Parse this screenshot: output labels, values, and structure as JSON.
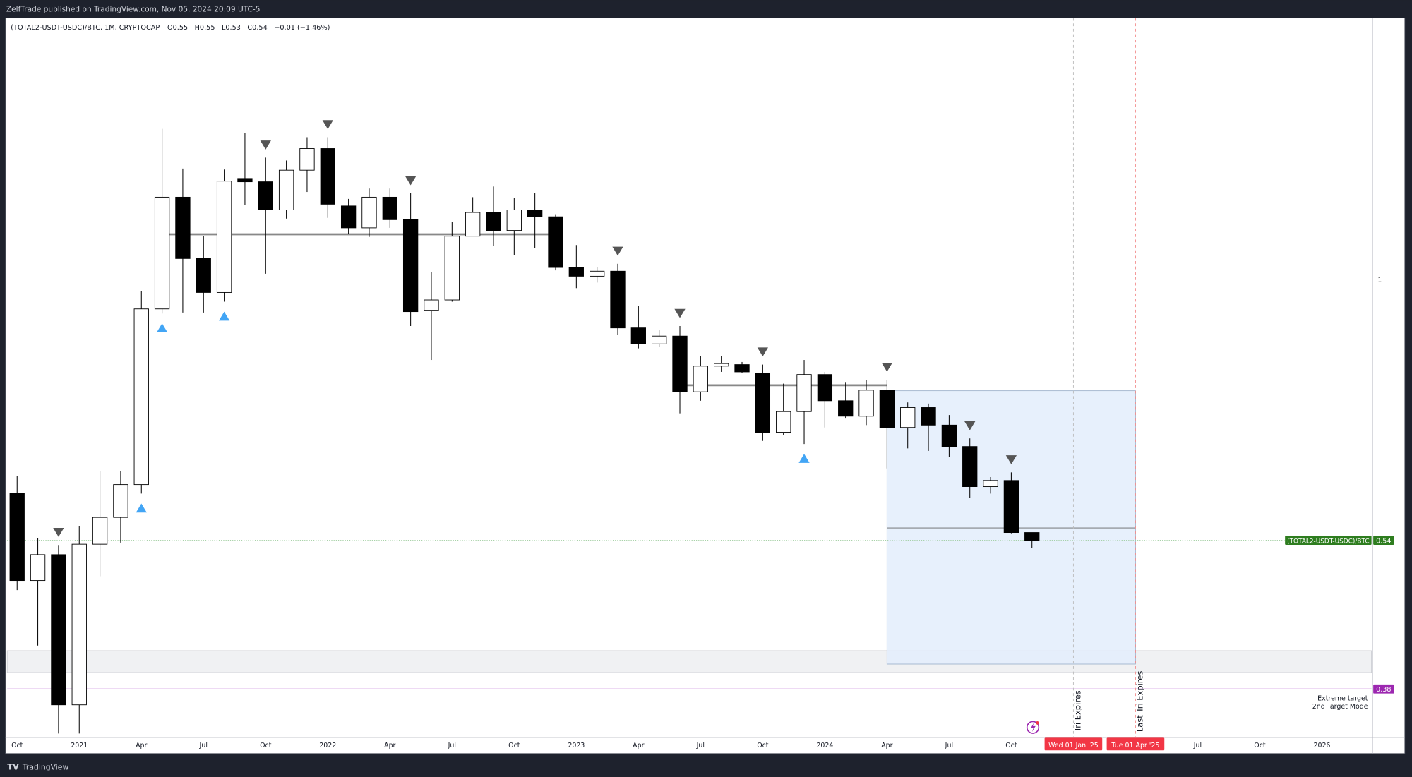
{
  "header": {
    "published": "ZelfTrade published on TradingView.com, Nov 05, 2024 20:09 UTC-5"
  },
  "legend": {
    "symbol": "(TOTAL2-USDT-USDC)/BTC, 1M, CRYPTOCAP",
    "o": "O0.55",
    "h": "H0.55",
    "l": "L0.53",
    "c": "C0.54",
    "change": "−0.01 (−1.46%)"
  },
  "footer": {
    "brand": "TradingView"
  },
  "colors": {
    "up_body": "#ffffff",
    "down_body": "#000000",
    "down_marker": "#555555",
    "up_marker": "#42a5f5",
    "price_badge": "#2e7d1f",
    "target_badge": "#9c27b0",
    "date_badge": "#f23645",
    "box_fill": "#e3edfb",
    "box_border": "#9fb3cc"
  },
  "chart_data": {
    "type": "candlestick",
    "interval": "1M",
    "y_scale": "log",
    "price_axis_ticks": [
      "1"
    ],
    "time_axis_ticks": [
      "Oct",
      "2021",
      "Apr",
      "Jul",
      "Oct",
      "2022",
      "Apr",
      "Jul",
      "Oct",
      "2023",
      "Apr",
      "Jul",
      "Oct",
      "2024",
      "Apr",
      "Jul",
      "Oct",
      "Wed 01 Jan '25",
      "Tue 01 Apr '25",
      "Jul",
      "Oct",
      "2026"
    ],
    "candles_columns": [
      "month",
      "open",
      "high",
      "low",
      "close"
    ],
    "candles": [
      [
        "2020-10",
        0.603,
        0.629,
        0.48,
        0.491
      ],
      [
        "2020-11",
        0.491,
        0.543,
        0.421,
        0.522
      ],
      [
        "2020-12",
        0.522,
        0.534,
        0.342,
        0.366
      ],
      [
        "2021-01",
        0.366,
        0.558,
        0.342,
        0.535
      ],
      [
        "2021-02",
        0.535,
        0.636,
        0.496,
        0.57
      ],
      [
        "2021-03",
        0.57,
        0.636,
        0.537,
        0.616
      ],
      [
        "2021-04",
        0.616,
        0.974,
        0.603,
        0.933
      ],
      [
        "2021-05",
        0.933,
        1.428,
        0.923,
        1.215
      ],
      [
        "2021-06",
        1.215,
        1.3,
        0.925,
        1.051
      ],
      [
        "2021-07",
        1.051,
        1.108,
        0.925,
        0.97
      ],
      [
        "2021-08",
        0.97,
        1.297,
        0.949,
        1.262
      ],
      [
        "2021-09",
        1.27,
        1.413,
        1.192,
        1.26
      ],
      [
        "2021-10",
        1.26,
        1.334,
        1.014,
        1.179
      ],
      [
        "2021-11",
        1.179,
        1.325,
        1.155,
        1.295
      ],
      [
        "2021-12",
        1.295,
        1.4,
        1.23,
        1.363
      ],
      [
        "2022-01",
        1.363,
        1.4,
        1.157,
        1.195
      ],
      [
        "2022-02",
        1.19,
        1.21,
        1.113,
        1.13
      ],
      [
        "2022-03",
        1.13,
        1.24,
        1.106,
        1.215
      ],
      [
        "2022-04",
        1.215,
        1.24,
        1.13,
        1.152
      ],
      [
        "2022-05",
        1.152,
        1.226,
        0.896,
        0.927
      ],
      [
        "2022-06",
        0.93,
        1.018,
        0.827,
        0.953
      ],
      [
        "2022-07",
        0.953,
        1.145,
        0.949,
        1.108
      ],
      [
        "2022-08",
        1.108,
        1.215,
        1.108,
        1.172
      ],
      [
        "2022-09",
        1.172,
        1.246,
        1.083,
        1.123
      ],
      [
        "2022-10",
        1.123,
        1.212,
        1.06,
        1.179
      ],
      [
        "2022-11",
        1.179,
        1.226,
        1.078,
        1.16
      ],
      [
        "2022-12",
        1.16,
        1.167,
        1.022,
        1.029
      ],
      [
        "2023-01",
        1.029,
        1.085,
        0.98,
        1.008
      ],
      [
        "2023-02",
        1.008,
        1.029,
        0.993,
        1.02
      ],
      [
        "2023-03",
        1.02,
        1.038,
        0.877,
        0.892
      ],
      [
        "2023-04",
        0.892,
        0.939,
        0.85,
        0.859
      ],
      [
        "2023-05",
        0.859,
        0.887,
        0.853,
        0.875
      ],
      [
        "2023-06",
        0.875,
        0.896,
        0.729,
        0.767
      ],
      [
        "2023-07",
        0.767,
        0.835,
        0.751,
        0.815
      ],
      [
        "2023-08",
        0.815,
        0.834,
        0.804,
        0.82
      ],
      [
        "2023-09",
        0.818,
        0.823,
        0.802,
        0.804
      ],
      [
        "2023-10",
        0.802,
        0.818,
        0.683,
        0.697
      ],
      [
        "2023-11",
        0.697,
        0.782,
        0.693,
        0.732
      ],
      [
        "2023-12",
        0.732,
        0.827,
        0.678,
        0.799
      ],
      [
        "2024-01",
        0.799,
        0.804,
        0.705,
        0.751
      ],
      [
        "2024-02",
        0.751,
        0.785,
        0.72,
        0.724
      ],
      [
        "2024-03",
        0.724,
        0.789,
        0.709,
        0.77
      ],
      [
        "2024-04",
        0.77,
        0.789,
        0.64,
        0.705
      ],
      [
        "2024-05",
        0.705,
        0.748,
        0.671,
        0.739
      ],
      [
        "2024-06",
        0.739,
        0.746,
        0.667,
        0.709
      ],
      [
        "2024-07",
        0.709,
        0.726,
        0.658,
        0.674
      ],
      [
        "2024-08",
        0.674,
        0.687,
        0.597,
        0.613
      ],
      [
        "2024-09",
        0.613,
        0.627,
        0.603,
        0.622
      ],
      [
        "2024-10",
        0.622,
        0.634,
        0.549,
        0.55
      ],
      [
        "2024-11",
        0.55,
        0.55,
        0.53,
        0.54
      ]
    ],
    "down_markers": [
      "2020-12",
      "2021-10",
      "2022-01",
      "2022-05",
      "2023-03",
      "2023-06",
      "2023-10",
      "2024-04",
      "2024-08",
      "2024-10"
    ],
    "up_markers": [
      "2021-04",
      "2021-05",
      "2021-08",
      "2023-12"
    ],
    "horizontal_lines": [
      {
        "price": 1.113,
        "from": "2021-05",
        "to": "2022-12"
      },
      {
        "price": 0.779,
        "from": "2023-06",
        "to": "2024-04"
      }
    ],
    "projection_box": {
      "from": "2024-04",
      "to": "2025-04",
      "top": 0.769,
      "bottom": 0.403,
      "mid": 0.556
    },
    "gray_zone": {
      "top": 0.416,
      "bottom": 0.395
    },
    "price_label": {
      "name": "(TOTAL2-USDT-USDC)/BTC",
      "value": "0.54"
    },
    "target_line": {
      "value": "0.38",
      "label1": "Extreme target",
      "label2": "2nd Target Mode"
    },
    "vertical_lines": [
      {
        "date": "2025-01",
        "label": "Tri Expires",
        "badge": "Wed 01 Jan '25"
      },
      {
        "date": "2025-04",
        "label": "Last Tri Expires",
        "badge": "Tue 01 Apr '25"
      }
    ]
  }
}
